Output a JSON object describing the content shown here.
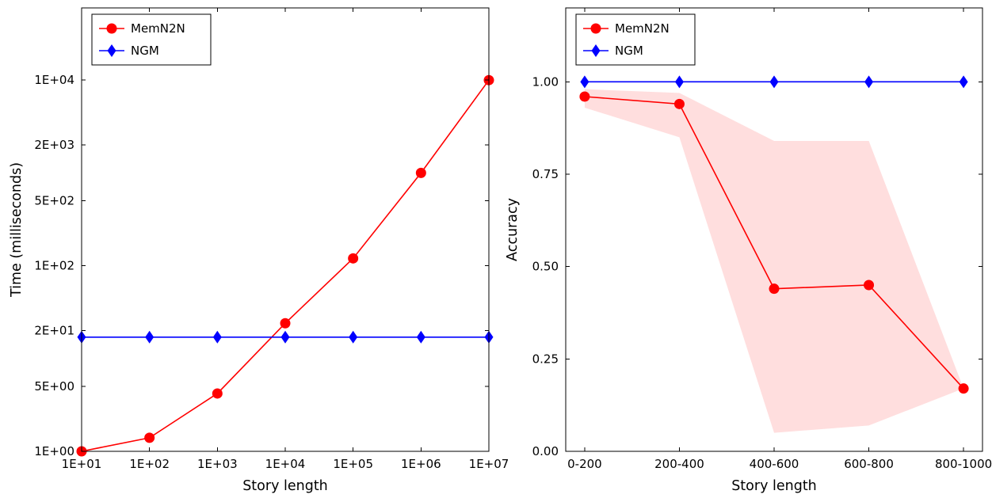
{
  "figure": {
    "background": "#ffffff"
  },
  "chart_data": [
    {
      "type": "line",
      "title": "",
      "xlabel": "Story length",
      "ylabel": "Time (milliseconds)",
      "x_scale": "log",
      "y_scale": "log",
      "xlim": [
        10,
        10000000
      ],
      "ylim": [
        1,
        60000
      ],
      "grid": false,
      "legend_position": "upper-left",
      "x_ticks": [
        {
          "value": 10,
          "label": "1E+01"
        },
        {
          "value": 100,
          "label": "1E+02"
        },
        {
          "value": 1000,
          "label": "1E+03"
        },
        {
          "value": 10000,
          "label": "1E+04"
        },
        {
          "value": 100000,
          "label": "1E+05"
        },
        {
          "value": 1000000,
          "label": "1E+06"
        },
        {
          "value": 10000000,
          "label": "1E+07"
        }
      ],
      "y_ticks": [
        {
          "value": 1,
          "label": "1E+00"
        },
        {
          "value": 5,
          "label": "5E+00"
        },
        {
          "value": 20,
          "label": "2E+01"
        },
        {
          "value": 100,
          "label": "1E+02"
        },
        {
          "value": 500,
          "label": "5E+02"
        },
        {
          "value": 2000,
          "label": "2E+03"
        },
        {
          "value": 10000,
          "label": "1E+04"
        }
      ],
      "series": [
        {
          "name": "MemN2N",
          "color": "#ff0000",
          "marker": "circle",
          "points": [
            {
              "x": 10,
              "y": 1.0
            },
            {
              "x": 100,
              "y": 1.4
            },
            {
              "x": 1000,
              "y": 4.2
            },
            {
              "x": 10000,
              "y": 24
            },
            {
              "x": 100000,
              "y": 120
            },
            {
              "x": 1000000,
              "y": 1000
            },
            {
              "x": 10000000,
              "y": 10000
            }
          ]
        },
        {
          "name": "NGM",
          "color": "#0000ff",
          "marker": "diamond",
          "points": [
            {
              "x": 10,
              "y": 17
            },
            {
              "x": 100,
              "y": 17
            },
            {
              "x": 1000,
              "y": 17
            },
            {
              "x": 10000,
              "y": 17
            },
            {
              "x": 100000,
              "y": 17
            },
            {
              "x": 1000000,
              "y": 17
            },
            {
              "x": 10000000,
              "y": 17
            }
          ]
        }
      ]
    },
    {
      "type": "line",
      "title": "",
      "xlabel": "Story length",
      "ylabel": "Accuracy",
      "x_scale": "linear",
      "y_scale": "linear",
      "categories": [
        "0-200",
        "200-400",
        "400-600",
        "600-800",
        "800-1000"
      ],
      "xlim": [
        -0.2,
        4.2
      ],
      "ylim": [
        0,
        1.2
      ],
      "grid": false,
      "legend_position": "upper-left",
      "x_ticks": [
        {
          "value": 0,
          "label": "0-200"
        },
        {
          "value": 1,
          "label": "200-400"
        },
        {
          "value": 2,
          "label": "400-600"
        },
        {
          "value": 3,
          "label": "600-800"
        },
        {
          "value": 4,
          "label": "800-1000"
        }
      ],
      "y_ticks": [
        {
          "value": 0,
          "label": "0.00"
        },
        {
          "value": 0.25,
          "label": "0.25"
        },
        {
          "value": 0.5,
          "label": "0.50"
        },
        {
          "value": 0.75,
          "label": "0.75"
        },
        {
          "value": 1.0,
          "label": "1.00"
        }
      ],
      "series": [
        {
          "name": "MemN2N",
          "color": "#ff0000",
          "marker": "circle",
          "points": [
            {
              "x": 0,
              "y": 0.96
            },
            {
              "x": 1,
              "y": 0.94
            },
            {
              "x": 2,
              "y": 0.44
            },
            {
              "x": 3,
              "y": 0.45
            },
            {
              "x": 4,
              "y": 0.17
            }
          ],
          "band": {
            "upper": [
              0.98,
              0.97,
              0.84,
              0.84,
              0.17
            ],
            "lower": [
              0.93,
              0.85,
              0.05,
              0.07,
              0.17
            ],
            "color": "#ff0000",
            "opacity": 0.13
          }
        },
        {
          "name": "NGM",
          "color": "#0000ff",
          "marker": "diamond",
          "points": [
            {
              "x": 0,
              "y": 1.0
            },
            {
              "x": 1,
              "y": 1.0
            },
            {
              "x": 2,
              "y": 1.0
            },
            {
              "x": 3,
              "y": 1.0
            },
            {
              "x": 4,
              "y": 1.0
            }
          ]
        }
      ]
    }
  ]
}
